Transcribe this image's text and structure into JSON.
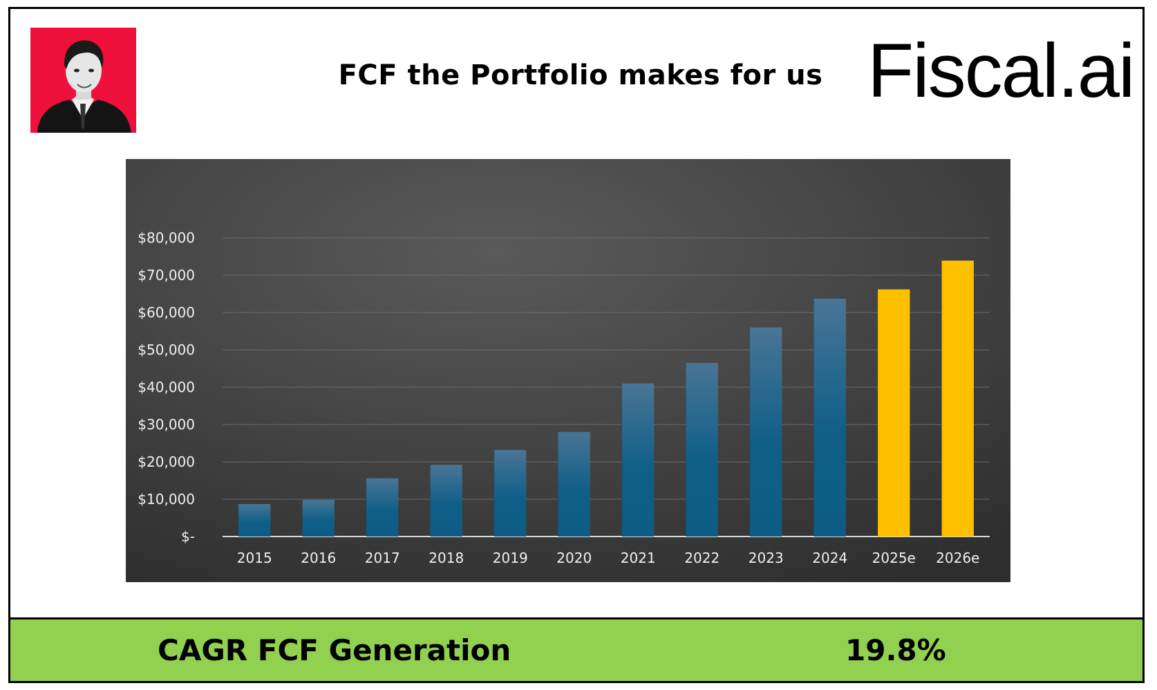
{
  "header": {
    "title": "FCF the Portfolio makes for us",
    "brand": "Fiscal.ai",
    "avatar_icon": "person-portrait-icon"
  },
  "footer": {
    "label": "CAGR FCF Generation",
    "value": "19.8%",
    "background": "#92d050"
  },
  "colors": {
    "actual_bar": "#1f5f85",
    "estimate_bar": "#ffc000",
    "chart_bg": "#404040",
    "avatar_bg": "#f0103c"
  },
  "chart_data": {
    "type": "bar",
    "categories": [
      "2015",
      "2016",
      "2017",
      "2018",
      "2019",
      "2020",
      "2021",
      "2022",
      "2023",
      "2024",
      "2025e",
      "2026e"
    ],
    "values": [
      8700,
      9800,
      15600,
      19200,
      23200,
      28000,
      41000,
      46500,
      56000,
      63700,
      66200,
      73900
    ],
    "estimate_categories": [
      "2025e",
      "2026e"
    ],
    "ylim": [
      0,
      80000
    ],
    "yticks": [
      0,
      10000,
      20000,
      30000,
      40000,
      50000,
      60000,
      70000,
      80000
    ],
    "ytick_labels": [
      "$-",
      "$10,000",
      "$20,000",
      "$30,000",
      "$40,000",
      "$50,000",
      "$60,000",
      "$70,000",
      "$80,000"
    ],
    "grid": true,
    "legend": "none"
  }
}
